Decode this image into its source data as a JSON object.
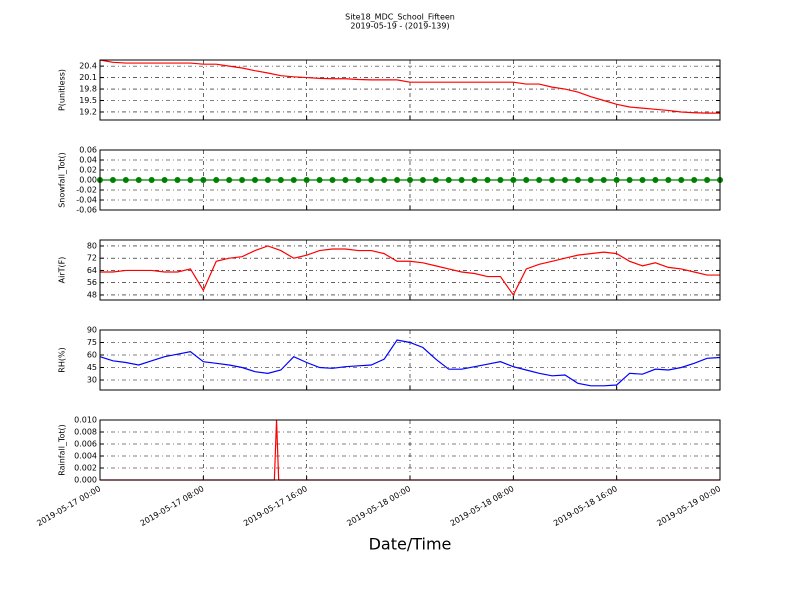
{
  "chart_data": [
    {
      "type": "line",
      "title": "Site18_MDC_School_Fifteen",
      "subtitle": "2019-05-19 - (2019-139)",
      "ylabel": "P(unitless)",
      "x": [
        "2019-05-17 00:00",
        "2019-05-17 01:00",
        "2019-05-17 02:00",
        "2019-05-17 03:00",
        "2019-05-17 04:00",
        "2019-05-17 05:00",
        "2019-05-17 06:00",
        "2019-05-17 07:00",
        "2019-05-17 08:00",
        "2019-05-17 09:00",
        "2019-05-17 10:00",
        "2019-05-17 11:00",
        "2019-05-17 12:00",
        "2019-05-17 13:00",
        "2019-05-17 14:00",
        "2019-05-17 15:00",
        "2019-05-17 16:00",
        "2019-05-17 17:00",
        "2019-05-17 18:00",
        "2019-05-17 19:00",
        "2019-05-17 20:00",
        "2019-05-17 21:00",
        "2019-05-17 22:00",
        "2019-05-17 23:00",
        "2019-05-18 00:00",
        "2019-05-18 01:00",
        "2019-05-18 02:00",
        "2019-05-18 03:00",
        "2019-05-18 04:00",
        "2019-05-18 05:00",
        "2019-05-18 06:00",
        "2019-05-18 07:00",
        "2019-05-18 08:00",
        "2019-05-18 09:00",
        "2019-05-18 10:00",
        "2019-05-18 11:00",
        "2019-05-18 12:00",
        "2019-05-18 13:00",
        "2019-05-18 14:00",
        "2019-05-18 15:00",
        "2019-05-18 16:00",
        "2019-05-18 17:00",
        "2019-05-18 18:00",
        "2019-05-18 19:00",
        "2019-05-18 20:00",
        "2019-05-18 21:00",
        "2019-05-18 22:00",
        "2019-05-18 23:00",
        "2019-05-19 00:00"
      ],
      "series": [
        {
          "color": "#ff0000",
          "values": [
            20.56,
            20.5,
            20.48,
            20.48,
            20.48,
            20.48,
            20.48,
            20.48,
            20.45,
            20.45,
            20.4,
            20.35,
            20.28,
            20.22,
            20.15,
            20.12,
            20.1,
            20.08,
            20.07,
            20.07,
            20.05,
            20.04,
            20.04,
            20.04,
            19.98,
            19.98,
            19.98,
            19.98,
            19.98,
            19.98,
            19.98,
            19.98,
            19.98,
            19.93,
            19.93,
            19.85,
            19.8,
            19.72,
            19.6,
            19.5,
            19.4,
            19.33,
            19.3,
            19.27,
            19.24,
            19.2,
            19.18,
            19.17,
            19.17
          ]
        }
      ],
      "xlim": [
        "2019-05-17 00:00",
        "2019-05-19 00:00"
      ],
      "ylim": [
        18.99,
        20.56
      ],
      "yticks": [
        19.2,
        19.5,
        19.8,
        20.1,
        20.4
      ],
      "grid": true
    },
    {
      "type": "line",
      "ylabel": "Snowfall_Tot()",
      "x": [
        "2019-05-17 00:00",
        "2019-05-17 01:00",
        "2019-05-17 02:00",
        "2019-05-17 03:00",
        "2019-05-17 04:00",
        "2019-05-17 05:00",
        "2019-05-17 06:00",
        "2019-05-17 07:00",
        "2019-05-17 08:00",
        "2019-05-17 09:00",
        "2019-05-17 10:00",
        "2019-05-17 11:00",
        "2019-05-17 12:00",
        "2019-05-17 13:00",
        "2019-05-17 14:00",
        "2019-05-17 15:00",
        "2019-05-17 16:00",
        "2019-05-17 17:00",
        "2019-05-17 18:00",
        "2019-05-17 19:00",
        "2019-05-17 20:00",
        "2019-05-17 21:00",
        "2019-05-17 22:00",
        "2019-05-17 23:00",
        "2019-05-18 00:00",
        "2019-05-18 01:00",
        "2019-05-18 02:00",
        "2019-05-18 03:00",
        "2019-05-18 04:00",
        "2019-05-18 05:00",
        "2019-05-18 06:00",
        "2019-05-18 07:00",
        "2019-05-18 08:00",
        "2019-05-18 09:00",
        "2019-05-18 10:00",
        "2019-05-18 11:00",
        "2019-05-18 12:00",
        "2019-05-18 13:00",
        "2019-05-18 14:00",
        "2019-05-18 15:00",
        "2019-05-18 16:00",
        "2019-05-18 17:00",
        "2019-05-18 18:00",
        "2019-05-18 19:00",
        "2019-05-18 20:00",
        "2019-05-18 21:00",
        "2019-05-18 22:00",
        "2019-05-18 23:00",
        "2019-05-19 00:00"
      ],
      "series": [
        {
          "color": "#008000",
          "marker": "o",
          "values": [
            0,
            0,
            0,
            0,
            0,
            0,
            0,
            0,
            0,
            0,
            0,
            0,
            0,
            0,
            0,
            0,
            0,
            0,
            0,
            0,
            0,
            0,
            0,
            0,
            0,
            0,
            0,
            0,
            0,
            0,
            0,
            0,
            0,
            0,
            0,
            0,
            0,
            0,
            0,
            0,
            0,
            0,
            0,
            0,
            0,
            0,
            0,
            0,
            0
          ]
        }
      ],
      "xlim": [
        "2019-05-17 00:00",
        "2019-05-19 00:00"
      ],
      "ylim": [
        -0.06,
        0.06
      ],
      "yticks": [
        -0.06,
        -0.04,
        -0.02,
        {
          "value": 0,
          "label": "0.00"
        },
        0.02,
        0.04,
        0.06
      ],
      "grid": true
    },
    {
      "type": "line",
      "ylabel": "AirT(F)",
      "x": [
        "2019-05-17 00:00",
        "2019-05-17 01:00",
        "2019-05-17 02:00",
        "2019-05-17 03:00",
        "2019-05-17 04:00",
        "2019-05-17 05:00",
        "2019-05-17 06:00",
        "2019-05-17 07:00",
        "2019-05-17 08:00",
        "2019-05-17 09:00",
        "2019-05-17 10:00",
        "2019-05-17 11:00",
        "2019-05-17 12:00",
        "2019-05-17 13:00",
        "2019-05-17 14:00",
        "2019-05-17 15:00",
        "2019-05-17 16:00",
        "2019-05-17 17:00",
        "2019-05-17 18:00",
        "2019-05-17 19:00",
        "2019-05-17 20:00",
        "2019-05-17 21:00",
        "2019-05-17 22:00",
        "2019-05-17 23:00",
        "2019-05-18 00:00",
        "2019-05-18 01:00",
        "2019-05-18 02:00",
        "2019-05-18 03:00",
        "2019-05-18 04:00",
        "2019-05-18 05:00",
        "2019-05-18 06:00",
        "2019-05-18 07:00",
        "2019-05-18 08:00",
        "2019-05-18 09:00",
        "2019-05-18 10:00",
        "2019-05-18 11:00",
        "2019-05-18 12:00",
        "2019-05-18 13:00",
        "2019-05-18 14:00",
        "2019-05-18 15:00",
        "2019-05-18 16:00",
        "2019-05-18 17:00",
        "2019-05-18 18:00",
        "2019-05-18 19:00",
        "2019-05-18 20:00",
        "2019-05-18 21:00",
        "2019-05-18 22:00",
        "2019-05-18 23:00",
        "2019-05-19 00:00"
      ],
      "series": [
        {
          "color": "#ff0000",
          "values": [
            63,
            63,
            64,
            64,
            64,
            63,
            63,
            65,
            51,
            70,
            72,
            73,
            77,
            80,
            77,
            72,
            74,
            77,
            78,
            78,
            77,
            77,
            75,
            70,
            70,
            69,
            67,
            65,
            63,
            62,
            60,
            60,
            48,
            65,
            68,
            70,
            72,
            74,
            75,
            76,
            75,
            70,
            67,
            69,
            66,
            65,
            63,
            61,
            61
          ]
        }
      ],
      "xlim": [
        "2019-05-17 00:00",
        "2019-05-19 00:00"
      ],
      "ylim": [
        44.7,
        83.9
      ],
      "yticks": [
        48,
        56,
        64,
        72,
        80
      ],
      "grid": true
    },
    {
      "type": "line",
      "ylabel": "RH(%)",
      "x": [
        "2019-05-17 00:00",
        "2019-05-17 01:00",
        "2019-05-17 02:00",
        "2019-05-17 03:00",
        "2019-05-17 04:00",
        "2019-05-17 05:00",
        "2019-05-17 06:00",
        "2019-05-17 07:00",
        "2019-05-17 08:00",
        "2019-05-17 09:00",
        "2019-05-17 10:00",
        "2019-05-17 11:00",
        "2019-05-17 12:00",
        "2019-05-17 13:00",
        "2019-05-17 14:00",
        "2019-05-17 15:00",
        "2019-05-17 16:00",
        "2019-05-17 17:00",
        "2019-05-17 18:00",
        "2019-05-17 19:00",
        "2019-05-17 20:00",
        "2019-05-17 21:00",
        "2019-05-17 22:00",
        "2019-05-17 23:00",
        "2019-05-18 00:00",
        "2019-05-18 01:00",
        "2019-05-18 02:00",
        "2019-05-18 03:00",
        "2019-05-18 04:00",
        "2019-05-18 05:00",
        "2019-05-18 06:00",
        "2019-05-18 07:00",
        "2019-05-18 08:00",
        "2019-05-18 09:00",
        "2019-05-18 10:00",
        "2019-05-18 11:00",
        "2019-05-18 12:00",
        "2019-05-18 13:00",
        "2019-05-18 14:00",
        "2019-05-18 15:00",
        "2019-05-18 16:00",
        "2019-05-18 17:00",
        "2019-05-18 18:00",
        "2019-05-18 19:00",
        "2019-05-18 20:00",
        "2019-05-18 21:00",
        "2019-05-18 22:00",
        "2019-05-18 23:00",
        "2019-05-19 00:00"
      ],
      "series": [
        {
          "color": "#0000ff",
          "values": [
            58,
            53,
            51,
            48,
            53,
            58,
            61,
            64,
            52,
            50,
            48,
            45,
            40,
            38,
            42,
            58,
            51,
            45,
            44,
            46,
            47,
            48,
            55,
            78,
            75,
            69,
            55,
            43,
            43,
            46,
            49,
            52,
            46,
            42,
            38,
            35,
            36,
            26,
            23,
            23,
            24,
            38,
            37,
            43,
            42,
            45,
            50,
            56,
            57
          ]
        }
      ],
      "xlim": [
        "2019-05-17 00:00",
        "2019-05-19 00:00"
      ],
      "ylim": [
        18,
        90
      ],
      "yticks": [
        30,
        45,
        60,
        75,
        90
      ],
      "grid": true
    },
    {
      "type": "line",
      "ylabel": "Rainfall_Tot()",
      "xlabel": "Date/Time",
      "x": [
        "2019-05-17 00:00",
        "2019-05-17 13:30",
        "2019-05-17 13:40",
        "2019-05-17 13:50",
        "2019-05-19 00:00"
      ],
      "series": [
        {
          "color": "#ff0000",
          "values": [
            0,
            0,
            0.01,
            0,
            0
          ]
        }
      ],
      "xlim": [
        "2019-05-17 00:00",
        "2019-05-19 00:00"
      ],
      "xticks": [
        "2019-05-17 00:00",
        "2019-05-17 08:00",
        "2019-05-17 16:00",
        "2019-05-18 00:00",
        "2019-05-18 08:00",
        "2019-05-18 16:00",
        "2019-05-19 00:00"
      ],
      "ylim": [
        0,
        0.01
      ],
      "yticks": [
        {
          "value": 0,
          "label": "0.000"
        },
        {
          "value": 0.002,
          "label": "0.002"
        },
        {
          "value": 0.004,
          "label": "0.004"
        },
        {
          "value": 0.006,
          "label": "0.006"
        },
        {
          "value": 0.008,
          "label": "0.008"
        },
        {
          "value": 0.01,
          "label": "0.010"
        }
      ],
      "grid": true
    }
  ]
}
